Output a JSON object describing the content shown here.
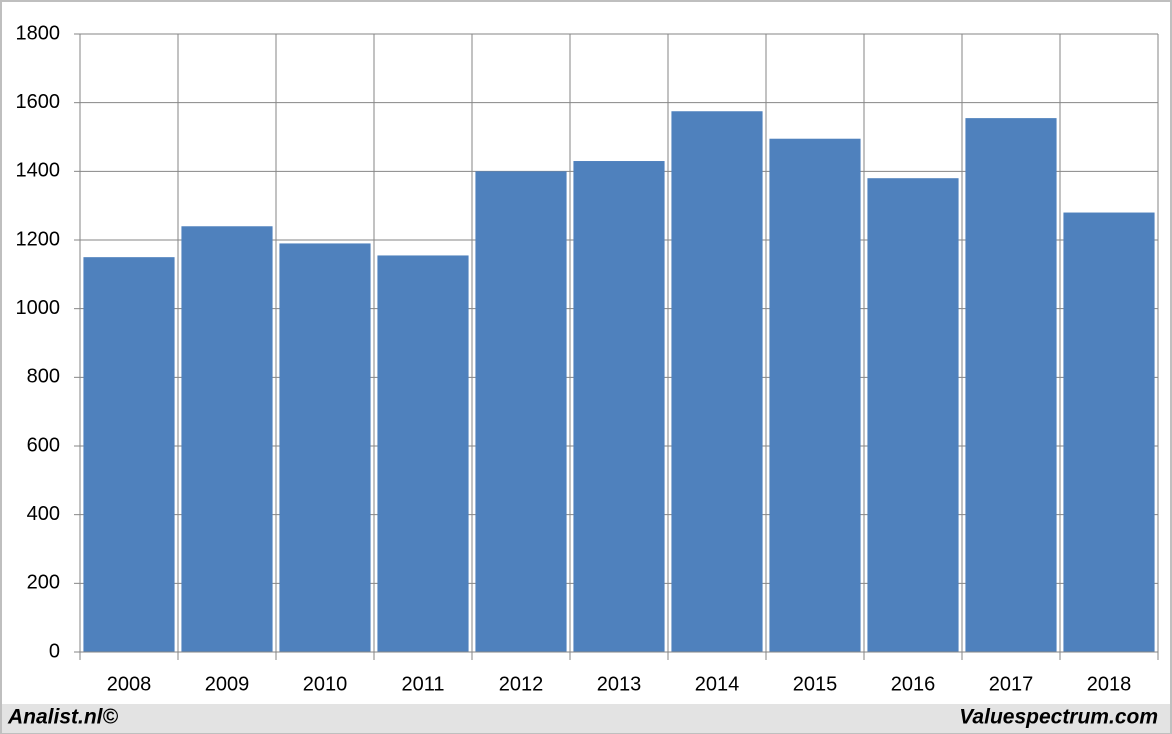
{
  "chart_data": {
    "type": "bar",
    "categories": [
      "2008",
      "2009",
      "2010",
      "2011",
      "2012",
      "2013",
      "2014",
      "2015",
      "2016",
      "2017",
      "2018"
    ],
    "values": [
      1150,
      1240,
      1190,
      1155,
      1400,
      1430,
      1575,
      1495,
      1380,
      1555,
      1280
    ],
    "color": "#4f81bd",
    "ylim": [
      0,
      1800
    ],
    "yticks": [
      0,
      200,
      400,
      600,
      800,
      1000,
      1200,
      1400,
      1600,
      1800
    ],
    "grid": true
  },
  "footer": {
    "left": "Analist.nl©",
    "right": "Valuespectrum.com"
  }
}
